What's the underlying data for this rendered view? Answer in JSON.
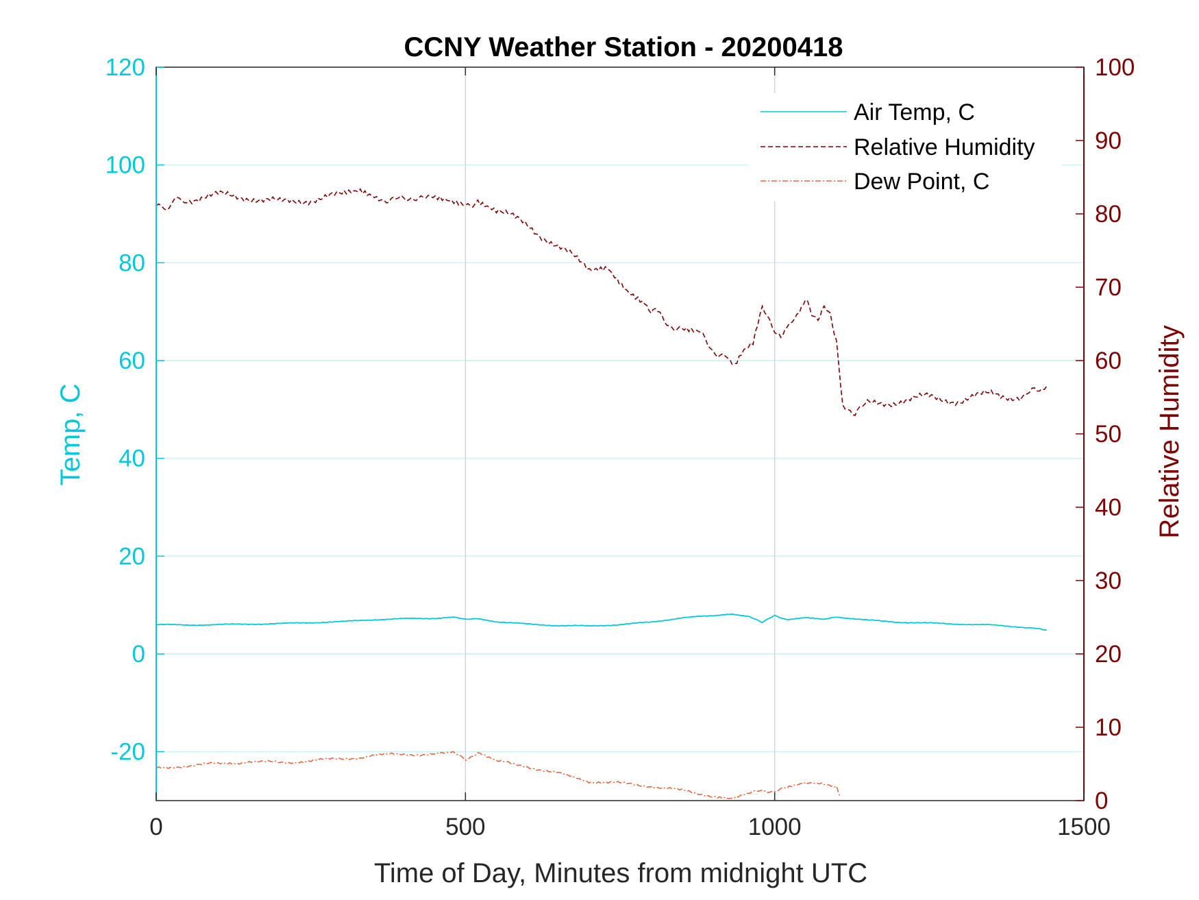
{
  "chart_data": {
    "type": "line",
    "title": "CCNY Weather Station - 20200418",
    "xlabel": "Time of Day, Minutes from midnight UTC",
    "ylabel_left": "Temp, C",
    "ylabel_right": "Relative Humidity",
    "xlim": [
      0,
      1500
    ],
    "ylim_left": [
      -30,
      120
    ],
    "ylim_right": [
      0,
      100
    ],
    "xticks": [
      "0",
      "500",
      "1000",
      "1500"
    ],
    "yticks_left": [
      "-20",
      "0",
      "20",
      "40",
      "60",
      "80",
      "100",
      "120"
    ],
    "yticks_right": [
      "0",
      "10",
      "20",
      "30",
      "40",
      "50",
      "60",
      "70",
      "80",
      "90",
      "100"
    ],
    "grid": true,
    "legend_position": "top-right",
    "colors": {
      "air_temp": "#00c8dc",
      "relative_humidity": "#7e0000",
      "dew_point": "#e8643a",
      "grid_h": "#c9f1f6",
      "grid_v": "#d0d4dc"
    },
    "series": [
      {
        "name": "Air Temp, C",
        "axis": "left",
        "style": "solid",
        "x": [
          0,
          50,
          100,
          150,
          200,
          250,
          300,
          350,
          400,
          450,
          480,
          500,
          520,
          550,
          600,
          650,
          700,
          750,
          800,
          850,
          900,
          930,
          960,
          980,
          1000,
          1020,
          1050,
          1080,
          1100,
          1150,
          1200,
          1250,
          1300,
          1350,
          1400,
          1440
        ],
        "y": [
          6.0,
          5.9,
          6.0,
          6.1,
          6.2,
          6.4,
          6.6,
          7.0,
          7.2,
          7.3,
          7.6,
          7.0,
          7.3,
          6.6,
          6.1,
          5.8,
          5.7,
          6.0,
          6.5,
          7.4,
          7.8,
          8.2,
          7.7,
          6.4,
          7.9,
          7.0,
          7.4,
          7.0,
          7.6,
          6.9,
          6.5,
          6.3,
          6.1,
          5.9,
          5.5,
          4.9
        ]
      },
      {
        "name": "Relative Humidity",
        "axis": "right",
        "style": "dashed",
        "x": [
          0,
          25,
          50,
          100,
          150,
          200,
          250,
          300,
          330,
          360,
          400,
          420,
          440,
          470,
          500,
          520,
          550,
          600,
          650,
          700,
          730,
          760,
          790,
          800,
          810,
          830,
          850,
          880,
          900,
          920,
          935,
          950,
          965,
          980,
          1000,
          1010,
          1020,
          1040,
          1050,
          1060,
          1070,
          1080,
          1090,
          1100,
          1110,
          1130,
          1150,
          1200,
          1250,
          1300,
          1350,
          1400,
          1440
        ],
        "y": [
          80.5,
          81.5,
          82.0,
          82.5,
          82.3,
          81.5,
          82.0,
          82.5,
          83.0,
          82.2,
          81.8,
          82.5,
          82.0,
          81.5,
          81.0,
          82.0,
          80.5,
          78.5,
          75.5,
          72.5,
          73.0,
          70.0,
          68.0,
          67.0,
          66.5,
          65.0,
          64.0,
          63.5,
          61.5,
          60.5,
          59.0,
          61.0,
          62.0,
          67.0,
          64.5,
          63.0,
          64.0,
          66.5,
          68.0,
          66.5,
          66.0,
          67.0,
          66.0,
          63.0,
          54.0,
          53.0,
          54.0,
          54.5,
          55.0,
          54.5,
          55.5,
          55.0,
          56.5
        ]
      },
      {
        "name": "Dew Point, C",
        "axis": "left",
        "style": "dashdot",
        "x": [
          0,
          50,
          100,
          150,
          200,
          250,
          300,
          350,
          400,
          450,
          480,
          500,
          520,
          550,
          600,
          650,
          700,
          750,
          800,
          850,
          900,
          930,
          960,
          980,
          1000,
          1020,
          1050,
          1080,
          1100,
          1105
        ],
        "y": [
          -23.5,
          -22.8,
          -22.5,
          -22.0,
          -22.3,
          -21.8,
          -21.5,
          -20.8,
          -20.5,
          -20.5,
          -20.3,
          -21.5,
          -20.2,
          -22.0,
          -23.0,
          -24.5,
          -26.0,
          -26.5,
          -27.0,
          -28.0,
          -29.0,
          -29.5,
          -28.5,
          -28.0,
          -28.0,
          -27.5,
          -26.5,
          -26.5,
          -27.0,
          -29.0
        ]
      }
    ]
  }
}
